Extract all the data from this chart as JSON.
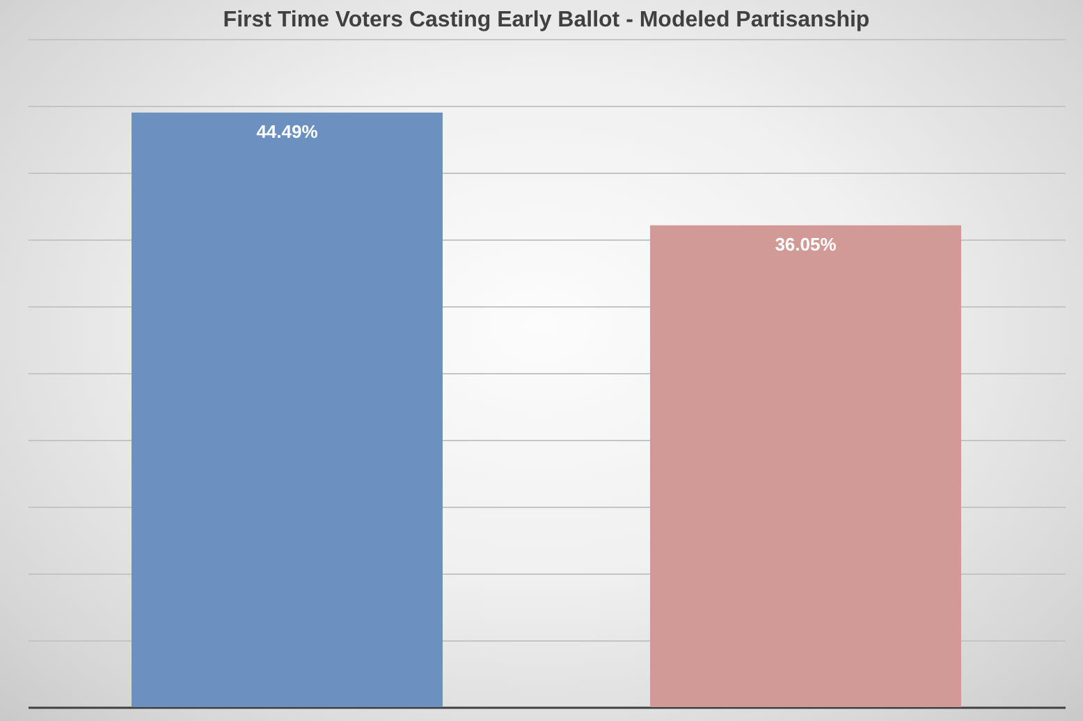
{
  "chart_data": {
    "type": "bar",
    "title": "First Time Voters Casting Early Ballot - Modeled Partisanship",
    "categories": [
      null,
      null
    ],
    "values": [
      44.49,
      36.05
    ],
    "colors": [
      "#6c90bf",
      "#d29a97"
    ],
    "value_labels": [
      "44.49%",
      "36.05%"
    ],
    "ylim": [
      0,
      50
    ],
    "yticks": [
      {
        "value": 0,
        "label": null
      },
      {
        "value": 5,
        "label": null
      },
      {
        "value": 10,
        "label": null
      },
      {
        "value": 15,
        "label": null
      },
      {
        "value": 20,
        "label": null
      },
      {
        "value": 25,
        "label": null
      },
      {
        "value": 30,
        "label": null
      },
      {
        "value": 35,
        "label": null
      },
      {
        "value": 40,
        "label": null
      },
      {
        "value": 45,
        "label": null
      },
      {
        "value": 50,
        "label": null
      }
    ],
    "grid": "y",
    "tick_labels": false
  }
}
